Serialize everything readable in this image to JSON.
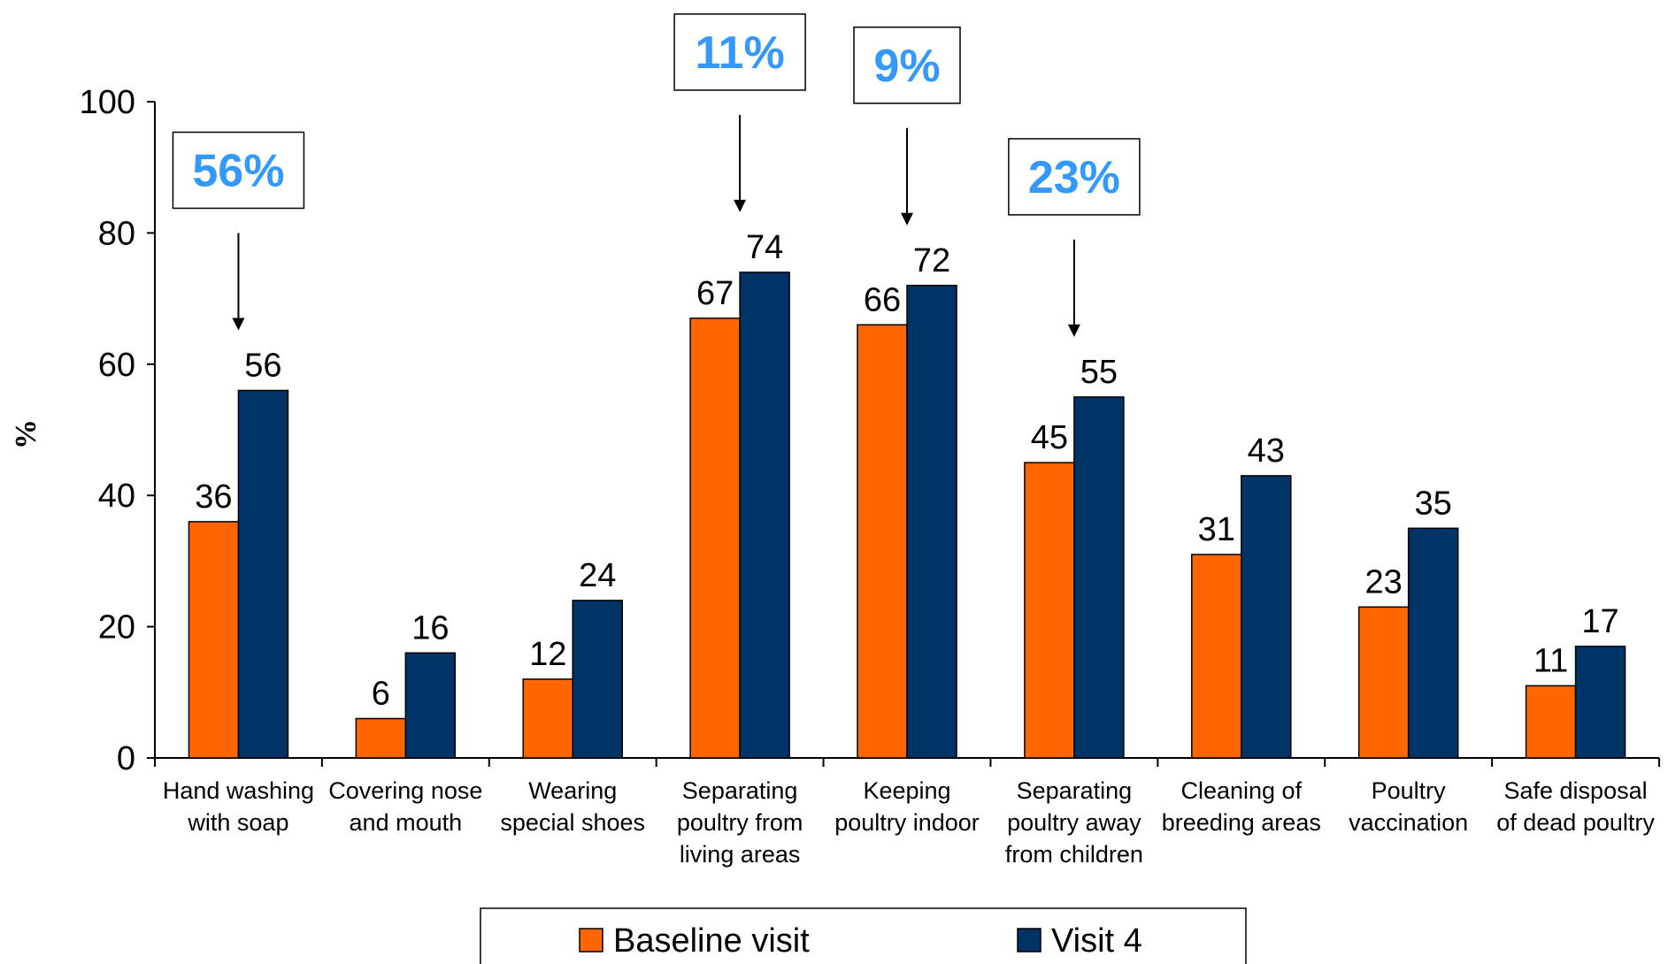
{
  "chart_data": {
    "type": "bar",
    "ylabel": "%",
    "ylim": [
      0,
      100
    ],
    "yticks": [
      0,
      20,
      40,
      60,
      80,
      100
    ],
    "categories": [
      [
        "Hand washing",
        "with soap"
      ],
      [
        "Covering nose",
        "and mouth"
      ],
      [
        "Wearing",
        "special shoes"
      ],
      [
        "Separating",
        "poultry from",
        "living areas"
      ],
      [
        "Keeping",
        "poultry indoor"
      ],
      [
        "Separating",
        "poultry away",
        "from children"
      ],
      [
        "Cleaning of",
        "breeding areas"
      ],
      [
        "Poultry",
        "vaccination"
      ],
      [
        "Safe disposal",
        "of dead poultry"
      ]
    ],
    "series": [
      {
        "name": "Baseline visit",
        "color": "#ff6600",
        "values": [
          36,
          6,
          12,
          67,
          66,
          45,
          31,
          23,
          11
        ]
      },
      {
        "name": "Visit 4",
        "color": "#003366",
        "values": [
          56,
          16,
          24,
          74,
          72,
          55,
          43,
          35,
          17
        ]
      }
    ],
    "annotations": [
      {
        "text": "56%",
        "category": 0
      },
      {
        "text": "11%",
        "category": 3
      },
      {
        "text": "9%",
        "category": 4
      },
      {
        "text": "23%",
        "category": 5
      }
    ],
    "annotation_color": "#3399ff",
    "legend_position": "bottom",
    "grid": false
  }
}
